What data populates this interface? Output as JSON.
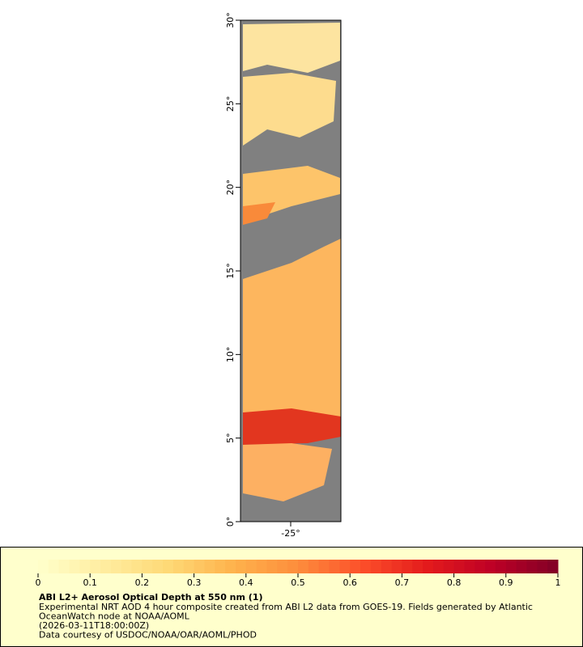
{
  "map": {
    "ylim": [
      0,
      30
    ],
    "yticks": [
      {
        "value": 0,
        "label": "0°"
      },
      {
        "value": 5,
        "label": "5°"
      },
      {
        "value": 10,
        "label": "10°"
      },
      {
        "value": 15,
        "label": "15°"
      },
      {
        "value": 20,
        "label": "20°"
      },
      {
        "value": 25,
        "label": "25°"
      },
      {
        "value": 30,
        "label": "30°"
      }
    ],
    "xlim": [
      -28,
      -22
    ],
    "xticks": [
      {
        "value": -25,
        "label": "-25°"
      }
    ]
  },
  "colorbar": {
    "lim": [
      0,
      1
    ],
    "ticks": [
      0,
      0.1,
      0.2,
      0.3,
      0.4,
      0.5,
      0.6,
      0.7,
      0.8,
      0.9,
      1
    ],
    "colors": [
      "#ffffcc",
      "#ffeda0",
      "#fed976",
      "#feb24c",
      "#fd8d3c",
      "#fc4e2a",
      "#e31a1c",
      "#bd0026",
      "#800026"
    ]
  },
  "legend": {
    "title": "ABI L2+ Aerosol Optical Depth at 550 nm (1)",
    "lines": [
      "Experimental NRT AOD 4 hour composite created from ABI L2 data from GOES-19. Fields generated by Atlantic",
      "OceanWatch node at NOAA/AOML",
      "(2026-03-11T18:00:00Z)",
      "Data courtesy of USDOC/NOAA/OAR/AOML/PHOD"
    ]
  }
}
